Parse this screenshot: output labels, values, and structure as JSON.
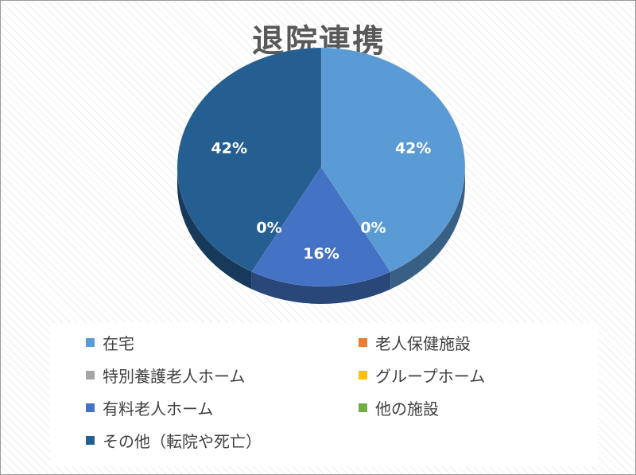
{
  "chart_data": {
    "type": "pie",
    "title": "退院連携",
    "categories": [
      "在宅",
      "老人保健施設",
      "特別養護老人ホーム",
      "グループホーム",
      "有料老人ホーム",
      "他の施設",
      "その他（転院や死亡）"
    ],
    "values": [
      42,
      0,
      0,
      0,
      16,
      0,
      42
    ],
    "data_labels": [
      "42%",
      "0%",
      "",
      "",
      "16%",
      "0%",
      "42%"
    ],
    "colors": [
      "#5b9bd5",
      "#ed7d31",
      "#a5a5a5",
      "#ffc000",
      "#4472c4",
      "#70ad47",
      "#255e91"
    ],
    "legend_position": "bottom",
    "style": "3d-pie"
  }
}
